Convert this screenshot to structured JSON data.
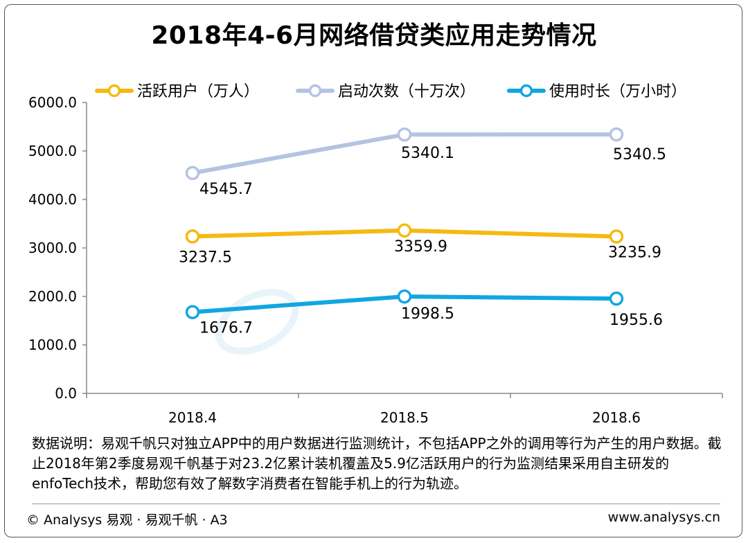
{
  "chart_data": {
    "type": "line",
    "title": "2018年4-6月网络借贷类应用走势情况",
    "categories": [
      "2018.4",
      "2018.5",
      "2018.6"
    ],
    "series": [
      {
        "name": "活跃用户（万人）",
        "values": [
          3237.5,
          3359.9,
          3235.9
        ],
        "labels": [
          "3237.5",
          "3359.9",
          "3235.9"
        ],
        "color": "#F5B911"
      },
      {
        "name": "启动次数（十万次）",
        "values": [
          4545.7,
          5340.1,
          5340.5
        ],
        "labels": [
          "4545.7",
          "5340.1",
          "5340.5"
        ],
        "color": "#B4C3E0"
      },
      {
        "name": "使用时长（万小时）",
        "values": [
          1676.7,
          1998.5,
          1955.6
        ],
        "labels": [
          "1676.7",
          "1998.5",
          "1955.6"
        ],
        "color": "#12A6E0"
      }
    ],
    "yticks": [
      "0.0",
      "1000.0",
      "2000.0",
      "3000.0",
      "4000.0",
      "5000.0",
      "6000.0"
    ],
    "ylim": [
      0,
      6000
    ],
    "grid": false,
    "legend": "top"
  },
  "note": "数据说明：易观千帆只对独立APP中的用户数据进行监测统计，不包括APP之外的调用等行为产生的用户数据。截止2018年第2季度易观千帆基于对23.2亿累计装机覆盖及5.9亿活跃用户的行为监测结果采用自主研发的enfoTech技术，帮助您有效了解数字消费者在智能手机上的行为轨迹。",
  "footer": {
    "left": "© Analysys 易观 · 易观千帆 · A3",
    "right": "www.analysys.cn"
  }
}
